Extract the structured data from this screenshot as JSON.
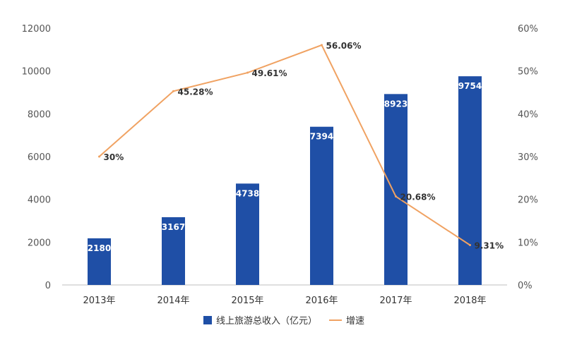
{
  "chart_data": {
    "type": "bar",
    "title": "",
    "categories": [
      "2013年",
      "2014年",
      "2015年",
      "2016年",
      "2017年",
      "2018年"
    ],
    "series": [
      {
        "name": "线上旅游总收入（亿元）",
        "type": "bar",
        "axis": "left",
        "values": [
          2180,
          3167,
          4738,
          7394,
          8923,
          9754
        ],
        "labels": [
          "2180",
          "3167",
          "4738",
          "7394",
          "8923",
          "9754"
        ]
      },
      {
        "name": "增速",
        "type": "line",
        "axis": "right",
        "values": [
          30,
          45.28,
          49.61,
          56.06,
          20.68,
          9.31
        ],
        "labels": [
          "30%",
          "45.28%",
          "49.61%",
          "56.06%",
          "20.68%",
          "9.31%"
        ]
      }
    ],
    "y_left": {
      "min": 0,
      "max": 12000,
      "ticks": [
        "0",
        "2000",
        "4000",
        "6000",
        "8000",
        "10000",
        "12000"
      ]
    },
    "y_right": {
      "min": 0,
      "max": 60,
      "ticks": [
        "0%",
        "10%",
        "20%",
        "30%",
        "40%",
        "50%",
        "60%"
      ]
    },
    "grid": false,
    "legend_position": "bottom",
    "colors": {
      "bar": "#1f4fa6",
      "line": "#f0a262",
      "axis": "#bfbfbf"
    }
  }
}
